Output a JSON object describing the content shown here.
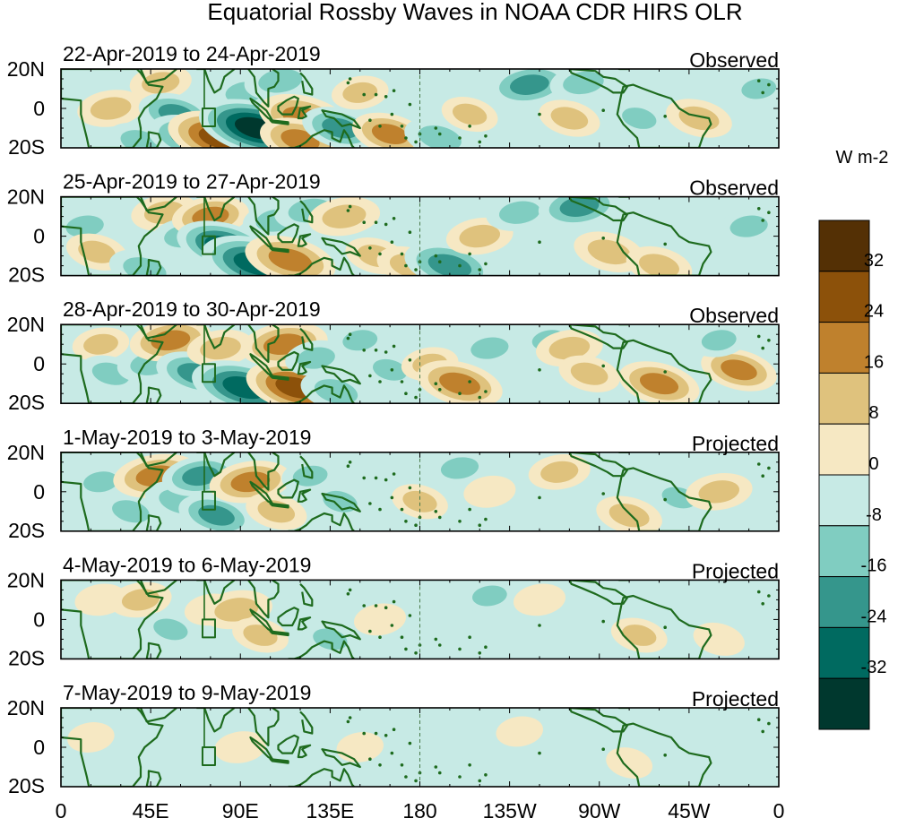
{
  "chart_data": {
    "type": "heatmap",
    "title": "Equatorial Rossby Waves in NOAA CDR HIRS OLR",
    "x_tick_labels": [
      "0",
      "45E",
      "90E",
      "135E",
      "180",
      "135W",
      "90W",
      "45W",
      "0"
    ],
    "x_ticks_deg": [
      0,
      45,
      90,
      135,
      180,
      225,
      270,
      315,
      360
    ],
    "y_tick_labels": [
      "20N",
      "0",
      "20S"
    ],
    "y_ticks_deg": [
      20,
      0,
      -20
    ],
    "xlim_deg": [
      0,
      360
    ],
    "ylim_deg": [
      -20,
      20
    ],
    "colorbar": {
      "units": "W m-2",
      "levels": [
        -32,
        -24,
        -16,
        -8,
        0,
        8,
        16,
        24,
        32
      ],
      "labels": [
        "32",
        "24",
        "16",
        "8",
        "0",
        "-8",
        "-16",
        "-24",
        "-32"
      ],
      "colors": [
        "#00382e",
        "#006a60",
        "#35968c",
        "#80cdc1",
        "#c7eae5",
        "#f6e8c3",
        "#dfc27d",
        "#bf812d",
        "#8c510a",
        "#543005"
      ]
    },
    "panels": [
      {
        "date_label": "22-Apr-2019 to 24-Apr-2019",
        "status": "Observed",
        "anomalies": [
          {
            "lon": 25,
            "lat": 0,
            "value": 14
          },
          {
            "lon": 40,
            "lat": -17,
            "value": -14
          },
          {
            "lon": 50,
            "lat": 13,
            "value": 12
          },
          {
            "lon": 58,
            "lat": -3,
            "value": -18
          },
          {
            "lon": 65,
            "lat": -15,
            "value": -22
          },
          {
            "lon": 80,
            "lat": -15,
            "value": 30
          },
          {
            "lon": 92,
            "lat": 8,
            "value": -12
          },
          {
            "lon": 98,
            "lat": -10,
            "value": -34
          },
          {
            "lon": 110,
            "lat": 14,
            "value": -16
          },
          {
            "lon": 122,
            "lat": -5,
            "value": 24
          },
          {
            "lon": 120,
            "lat": -16,
            "value": 20
          },
          {
            "lon": 140,
            "lat": -10,
            "value": -18
          },
          {
            "lon": 150,
            "lat": 8,
            "value": 10
          },
          {
            "lon": 165,
            "lat": -13,
            "value": 18
          },
          {
            "lon": 190,
            "lat": -15,
            "value": -16
          },
          {
            "lon": 205,
            "lat": -3,
            "value": 10
          },
          {
            "lon": 235,
            "lat": 12,
            "value": -20
          },
          {
            "lon": 255,
            "lat": -5,
            "value": 12
          },
          {
            "lon": 262,
            "lat": 13,
            "value": -14
          },
          {
            "lon": 290,
            "lat": -5,
            "value": -10
          },
          {
            "lon": 320,
            "lat": -5,
            "value": 14
          },
          {
            "lon": 350,
            "lat": 10,
            "value": -10
          }
        ]
      },
      {
        "date_label": "25-Apr-2019 to 27-Apr-2019",
        "status": "Observed",
        "anomalies": [
          {
            "lon": 12,
            "lat": 5,
            "value": -12
          },
          {
            "lon": 18,
            "lat": -8,
            "value": 12
          },
          {
            "lon": 42,
            "lat": -17,
            "value": -16
          },
          {
            "lon": 52,
            "lat": 12,
            "value": 14
          },
          {
            "lon": 62,
            "lat": 0,
            "value": -14
          },
          {
            "lon": 75,
            "lat": 10,
            "value": 18
          },
          {
            "lon": 82,
            "lat": -5,
            "value": -26
          },
          {
            "lon": 98,
            "lat": -14,
            "value": -32
          },
          {
            "lon": 108,
            "lat": 8,
            "value": -14
          },
          {
            "lon": 115,
            "lat": -12,
            "value": 24
          },
          {
            "lon": 125,
            "lat": 13,
            "value": -16
          },
          {
            "lon": 142,
            "lat": 10,
            "value": 16
          },
          {
            "lon": 158,
            "lat": -10,
            "value": 12
          },
          {
            "lon": 175,
            "lat": -15,
            "value": 14
          },
          {
            "lon": 195,
            "lat": -15,
            "value": -24
          },
          {
            "lon": 210,
            "lat": 0,
            "value": 14
          },
          {
            "lon": 230,
            "lat": 12,
            "value": -14
          },
          {
            "lon": 260,
            "lat": 15,
            "value": -20
          },
          {
            "lon": 275,
            "lat": -8,
            "value": 16
          },
          {
            "lon": 300,
            "lat": -15,
            "value": 14
          },
          {
            "lon": 345,
            "lat": 5,
            "value": -12
          }
        ]
      },
      {
        "date_label": "28-Apr-2019 to 30-Apr-2019",
        "status": "Observed",
        "anomalies": [
          {
            "lon": 20,
            "lat": 10,
            "value": 10
          },
          {
            "lon": 25,
            "lat": -5,
            "value": -12
          },
          {
            "lon": 45,
            "lat": 0,
            "value": -14
          },
          {
            "lon": 55,
            "lat": 12,
            "value": 20
          },
          {
            "lon": 68,
            "lat": -5,
            "value": -20
          },
          {
            "lon": 80,
            "lat": 8,
            "value": 14
          },
          {
            "lon": 92,
            "lat": -12,
            "value": -30
          },
          {
            "lon": 112,
            "lat": 10,
            "value": 22
          },
          {
            "lon": 118,
            "lat": -12,
            "value": 28
          },
          {
            "lon": 128,
            "lat": 3,
            "value": -12
          },
          {
            "lon": 138,
            "lat": -14,
            "value": -16
          },
          {
            "lon": 150,
            "lat": 12,
            "value": -10
          },
          {
            "lon": 165,
            "lat": -3,
            "value": -10
          },
          {
            "lon": 185,
            "lat": 0,
            "value": 10
          },
          {
            "lon": 200,
            "lat": -10,
            "value": 22
          },
          {
            "lon": 215,
            "lat": 8,
            "value": -12
          },
          {
            "lon": 245,
            "lat": 12,
            "value": -10
          },
          {
            "lon": 255,
            "lat": 8,
            "value": 14
          },
          {
            "lon": 265,
            "lat": -5,
            "value": 12
          },
          {
            "lon": 300,
            "lat": -10,
            "value": 20
          },
          {
            "lon": 340,
            "lat": -3,
            "value": 18
          },
          {
            "lon": 330,
            "lat": 12,
            "value": -10
          }
        ]
      },
      {
        "date_label": "1-May-2019 to 3-May-2019",
        "status": "Projected",
        "anomalies": [
          {
            "lon": 20,
            "lat": 5,
            "value": -10
          },
          {
            "lon": 35,
            "lat": -10,
            "value": -12
          },
          {
            "lon": 48,
            "lat": 8,
            "value": 22
          },
          {
            "lon": 60,
            "lat": -5,
            "value": -16
          },
          {
            "lon": 70,
            "lat": 8,
            "value": -18
          },
          {
            "lon": 78,
            "lat": -12,
            "value": -18
          },
          {
            "lon": 95,
            "lat": 5,
            "value": 20
          },
          {
            "lon": 108,
            "lat": -10,
            "value": 12
          },
          {
            "lon": 125,
            "lat": 8,
            "value": -10
          },
          {
            "lon": 140,
            "lat": -5,
            "value": -10
          },
          {
            "lon": 180,
            "lat": -5,
            "value": 10
          },
          {
            "lon": 200,
            "lat": 12,
            "value": -12
          },
          {
            "lon": 215,
            "lat": 0,
            "value": 8
          },
          {
            "lon": 250,
            "lat": 10,
            "value": 12
          },
          {
            "lon": 285,
            "lat": -12,
            "value": 14
          },
          {
            "lon": 310,
            "lat": -3,
            "value": -10
          },
          {
            "lon": 330,
            "lat": 0,
            "value": 14
          }
        ]
      },
      {
        "date_label": "4-May-2019 to 6-May-2019",
        "status": "Projected",
        "anomalies": [
          {
            "lon": 20,
            "lat": 10,
            "value": 8
          },
          {
            "lon": 40,
            "lat": 10,
            "value": 12
          },
          {
            "lon": 55,
            "lat": -5,
            "value": -10
          },
          {
            "lon": 75,
            "lat": 5,
            "value": 8
          },
          {
            "lon": 88,
            "lat": 5,
            "value": 16
          },
          {
            "lon": 100,
            "lat": -8,
            "value": 10
          },
          {
            "lon": 120,
            "lat": 10,
            "value": -8
          },
          {
            "lon": 135,
            "lat": -10,
            "value": -10
          },
          {
            "lon": 160,
            "lat": 0,
            "value": 8
          },
          {
            "lon": 190,
            "lat": 5,
            "value": -8
          },
          {
            "lon": 215,
            "lat": 12,
            "value": -10
          },
          {
            "lon": 240,
            "lat": 10,
            "value": 8
          },
          {
            "lon": 290,
            "lat": -8,
            "value": 10
          },
          {
            "lon": 330,
            "lat": -10,
            "value": 8
          }
        ]
      },
      {
        "date_label": "7-May-2019 to 9-May-2019",
        "status": "Projected",
        "anomalies": [
          {
            "lon": 15,
            "lat": 5,
            "value": 6
          },
          {
            "lon": 50,
            "lat": 0,
            "value": -8
          },
          {
            "lon": 90,
            "lat": 0,
            "value": 8
          },
          {
            "lon": 115,
            "lat": 5,
            "value": -8
          },
          {
            "lon": 150,
            "lat": 0,
            "value": 6
          },
          {
            "lon": 195,
            "lat": 0,
            "value": -6
          },
          {
            "lon": 230,
            "lat": 8,
            "value": 6
          },
          {
            "lon": 285,
            "lat": -8,
            "value": 6
          },
          {
            "lon": 320,
            "lat": 5,
            "value": -6
          }
        ]
      }
    ]
  }
}
